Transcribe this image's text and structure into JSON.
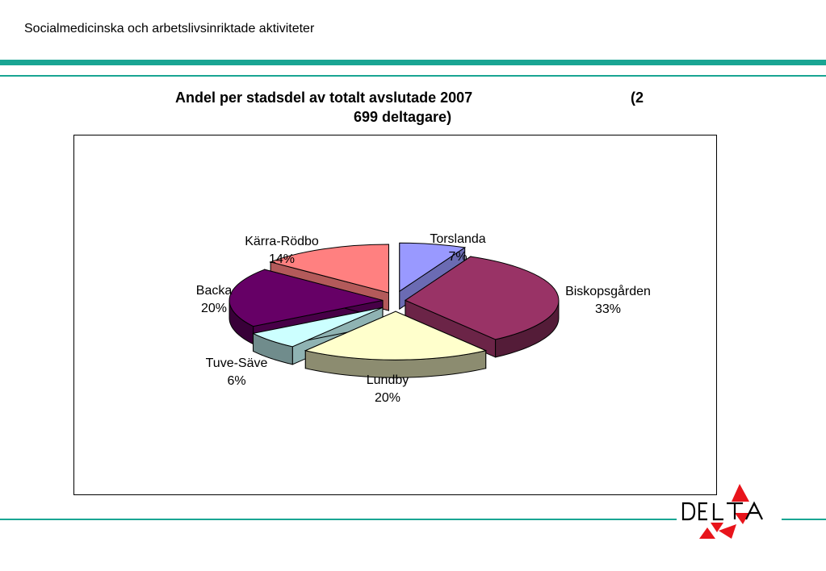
{
  "header": {
    "title": "Socialmedicinska och arbetslivsinriktade aktiviteter"
  },
  "chart_data": {
    "type": "pie",
    "title_line1": "Andel per stadsdel av totalt avslutade 2007",
    "title_line1_suffix": "(2",
    "title_line2": "699 deltagare)",
    "xlabel": "",
    "ylabel": "",
    "legend": "none",
    "style": "3d-exploded",
    "slices": [
      {
        "name": "Torslanda",
        "value": 7,
        "label": "7%",
        "color": "#9999ff"
      },
      {
        "name": "Biskopsgården",
        "value": 33,
        "label": "33%",
        "color": "#993366"
      },
      {
        "name": "Lundby",
        "value": 20,
        "label": "20%",
        "color": "#ffffcc"
      },
      {
        "name": "Tuve-Säve",
        "value": 6,
        "label": "6%",
        "color": "#ccffff"
      },
      {
        "name": "Backa",
        "value": 20,
        "label": "20%",
        "color": "#660066"
      },
      {
        "name": "Kärra-Rödbo",
        "value": 14,
        "label": "14%",
        "color": "#ff8080"
      }
    ]
  },
  "logo": {
    "text": "DELTA",
    "colors": {
      "red": "#e8141b",
      "ink": "#000000"
    }
  }
}
